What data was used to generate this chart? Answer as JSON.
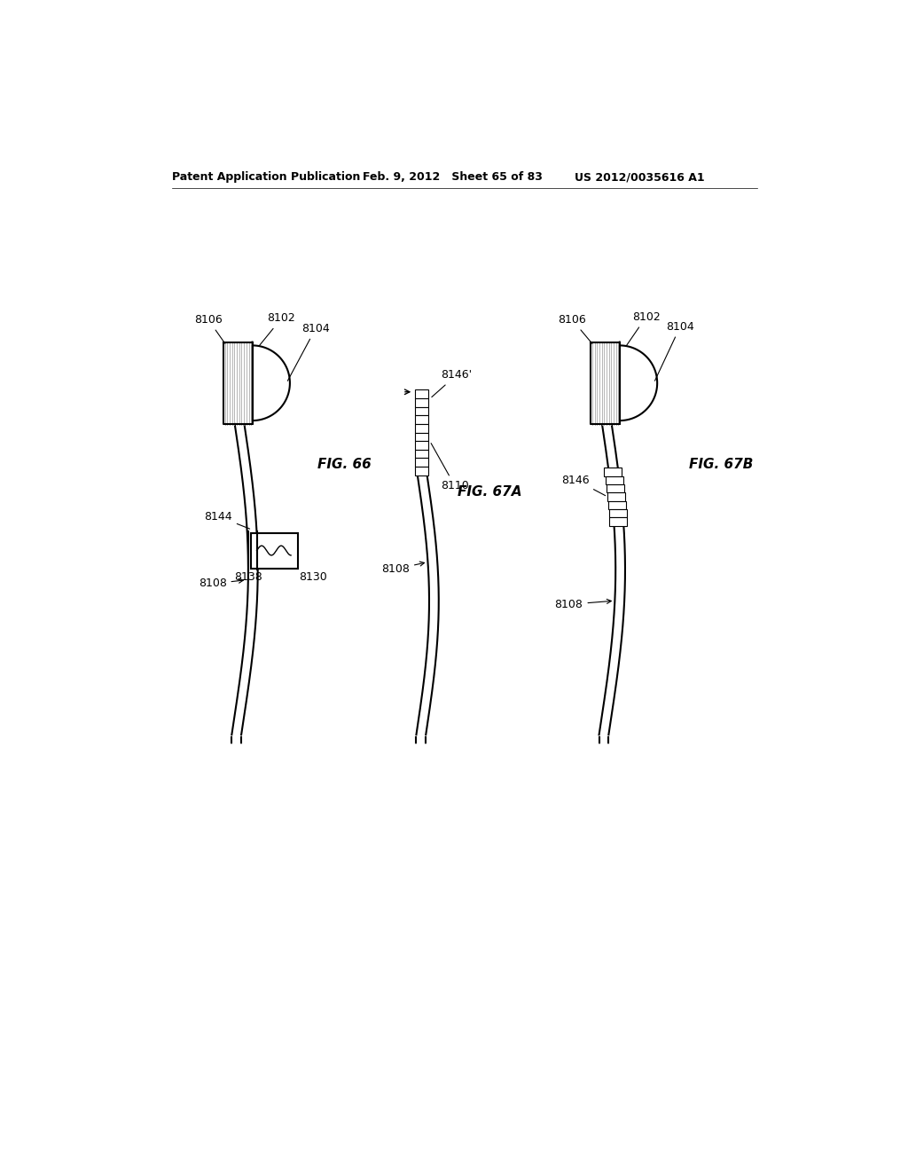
{
  "bg_color": "#ffffff",
  "header_left": "Patent Application Publication",
  "header_mid": "Feb. 9, 2012   Sheet 65 of 83",
  "header_right": "US 2012/0035616 A1",
  "fig66_label": "FIG. 66",
  "fig67a_label": "FIG. 67A",
  "fig67b_label": "FIG. 67B",
  "text_color": "#000000",
  "line_color": "#000000",
  "line_width": 1.5,
  "label_fontsize": 9,
  "fig_label_fontsize": 11
}
